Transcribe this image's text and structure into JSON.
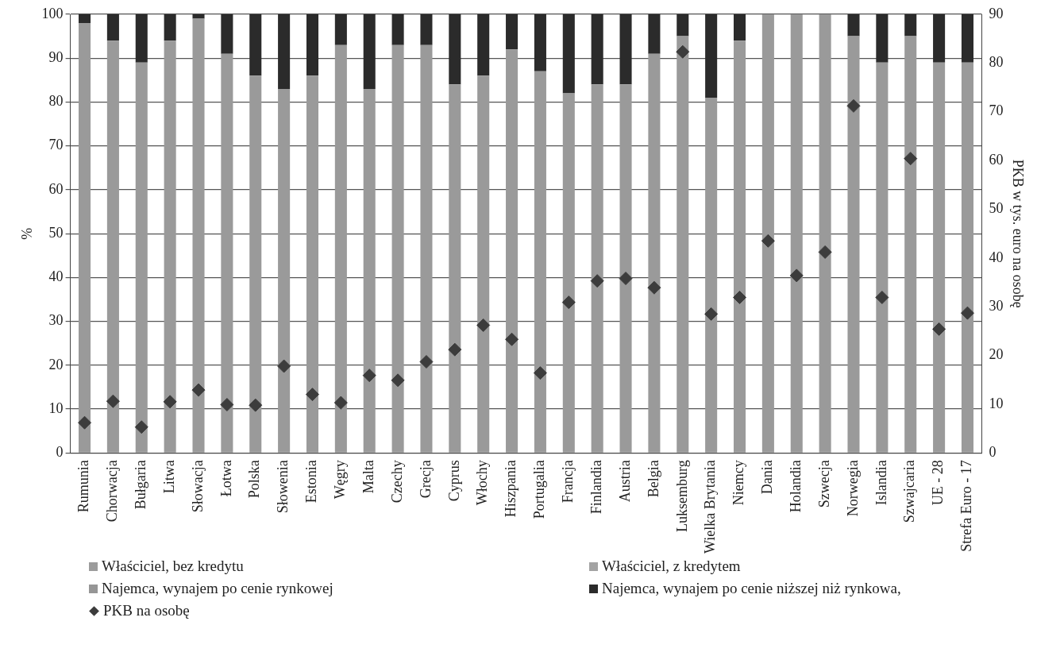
{
  "chart_data": {
    "type": "bar",
    "stacked": true,
    "ylabel": "%",
    "y2label": "PKB w tys. euro na osobę",
    "grid": "y",
    "legend": "bottom",
    "marker": "diamond",
    "categories": [
      "Rumunia",
      "Chorwacja",
      "Bułgaria",
      "Litwa",
      "Słowacja",
      "Łotwa",
      "Polska",
      "Słowenia",
      "Estonia",
      "Węgry",
      "Malta",
      "Czechy",
      "Grecja",
      "Cyprus",
      "Włochy",
      "Hiszpania",
      "Portugalia",
      "Francja",
      "Finlandia",
      "Austria",
      "Belgia",
      "Luksemburg",
      "Wielka Brytania",
      "Niemcy",
      "Dania",
      "Holandia",
      "Szwecja",
      "Norwegia",
      "Islandia",
      "Szwajcaria",
      "UE - 28",
      "Strefa Euro - 17"
    ],
    "ylim": [
      0,
      100
    ],
    "yticks": [
      0,
      10,
      20,
      30,
      40,
      50,
      60,
      70,
      80,
      90,
      100
    ],
    "y2lim": [
      0,
      90
    ],
    "y2ticks": [
      0,
      10,
      20,
      30,
      40,
      50,
      60,
      70,
      80,
      90
    ],
    "series": [
      {
        "name": "Właściciel, bez kredytu",
        "color": "#9c9c9c",
        "values": [
          null,
          null,
          null,
          null,
          null,
          null,
          null,
          null,
          null,
          null,
          null,
          null,
          null,
          null,
          null,
          null,
          null,
          null,
          null,
          null,
          null,
          null,
          null,
          null,
          null,
          null,
          null,
          null,
          null,
          null,
          null,
          null
        ]
      },
      {
        "name": "Właściciel, z kredytem",
        "color": "#a3a3a3",
        "values": [
          null,
          null,
          null,
          null,
          null,
          null,
          null,
          null,
          null,
          null,
          null,
          null,
          null,
          null,
          null,
          null,
          null,
          null,
          null,
          null,
          null,
          null,
          null,
          null,
          null,
          null,
          null,
          null,
          null,
          null,
          null,
          null
        ]
      },
      {
        "name": "Najemca, wynajem po cenie rynkowej",
        "color": "#969696",
        "values": [
          null,
          null,
          null,
          null,
          null,
          null,
          null,
          null,
          null,
          null,
          null,
          null,
          null,
          null,
          null,
          null,
          null,
          null,
          null,
          null,
          null,
          null,
          null,
          null,
          null,
          null,
          null,
          null,
          null,
          null,
          null,
          null
        ]
      },
      {
        "color": "#9a9a9a",
        "values": [
          98,
          94,
          89,
          94,
          99,
          91,
          86,
          83,
          86,
          93,
          83,
          93,
          93,
          84,
          86,
          92,
          87,
          82,
          84,
          84,
          91,
          95,
          81,
          94,
          100,
          100,
          100,
          95,
          89,
          95,
          89,
          89
        ]
      },
      {
        "name": "Najemca, wynajem po cenie niższej niż rynkowa,",
        "color": "#2b2b2b",
        "values": [
          2,
          6,
          11,
          6,
          1,
          9,
          14,
          17,
          14,
          7,
          17,
          7,
          7,
          16,
          14,
          8,
          13,
          18,
          16,
          16,
          9,
          5,
          19,
          6,
          0,
          0,
          0,
          5,
          11,
          5,
          11,
          11
        ]
      },
      {
        "name": "PKB na osobę",
        "type": "scatter",
        "axis": "y2",
        "color": "#3c3c3c",
        "values": [
          6.2,
          10.6,
          5.3,
          10.5,
          12.9,
          9.9,
          9.8,
          17.8,
          12,
          10.3,
          15.9,
          14.9,
          18.7,
          21.2,
          26.2,
          23.3,
          16.4,
          30.9,
          35.3,
          35.8,
          33.9,
          82.3,
          28.5,
          31.9,
          43.5,
          36.4,
          41.2,
          71.2,
          31.9,
          60.4,
          25.4,
          28.7
        ]
      }
    ]
  }
}
